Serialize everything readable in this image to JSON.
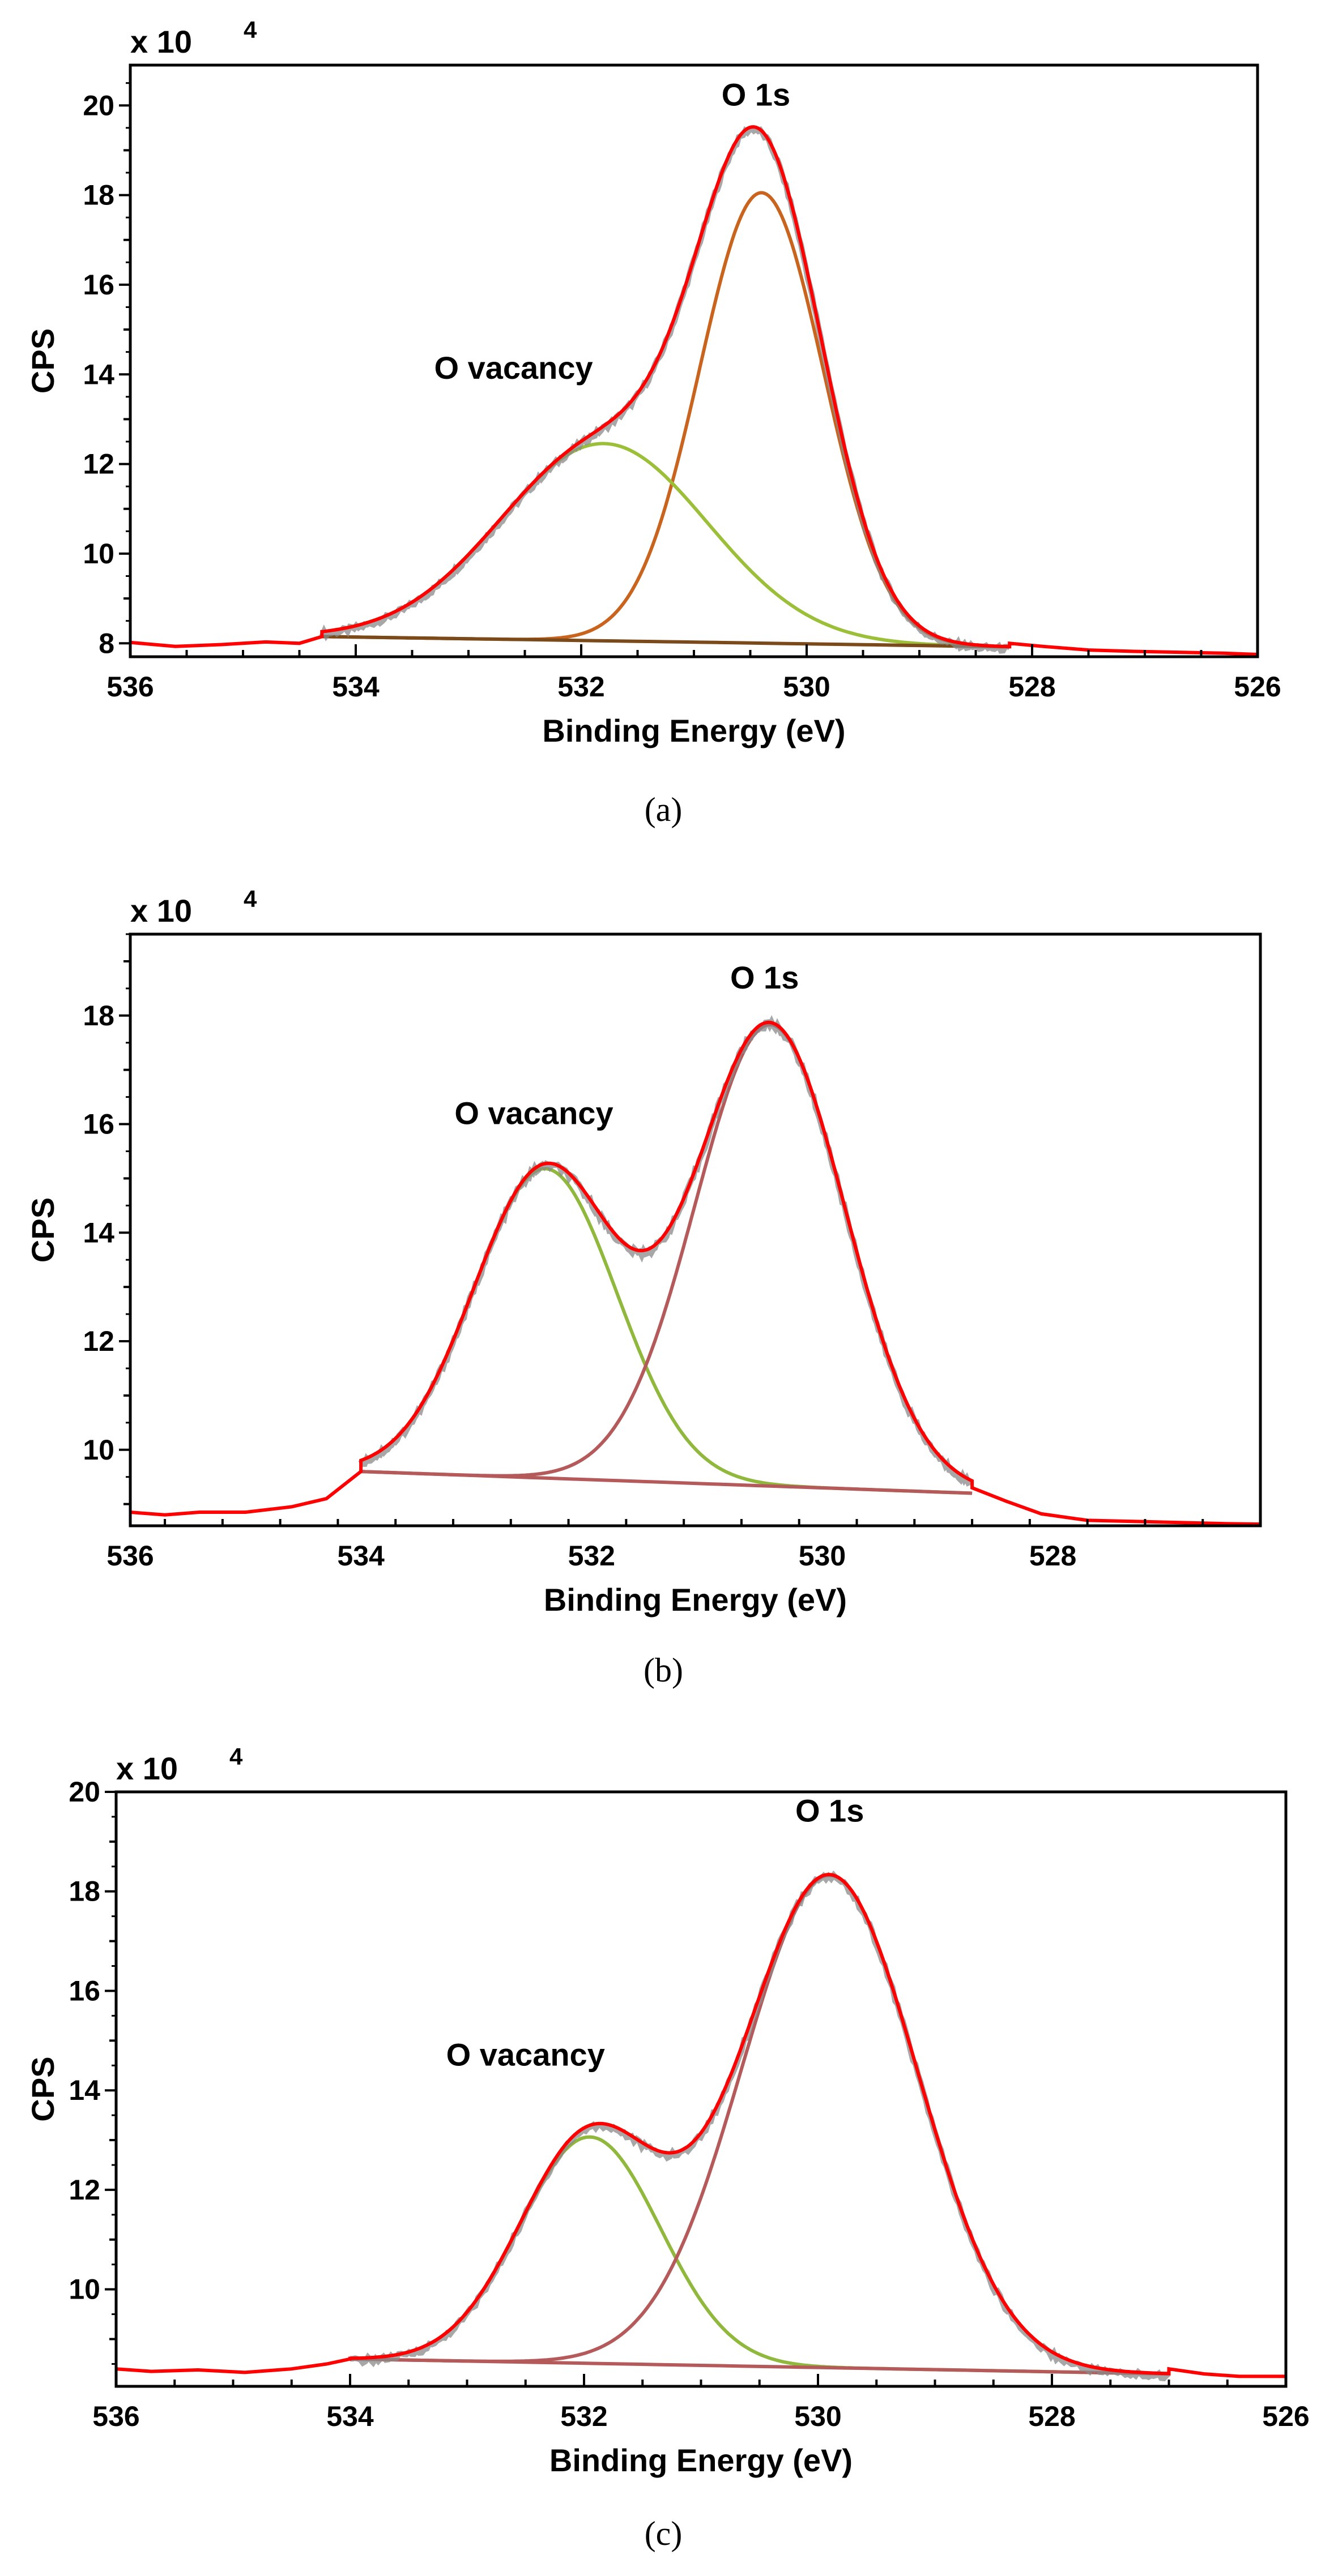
{
  "chart_data": [
    {
      "type": "line",
      "panel": "a",
      "caption": "(a)",
      "xlabel": "Binding Energy (eV)",
      "ylabel": "CPS",
      "y_multiplier": "x 10",
      "y_exponent": "4",
      "xlim": [
        536,
        526
      ],
      "ylim": [
        7.7,
        20.9
      ],
      "xticks": [
        536,
        534,
        532,
        530,
        528,
        526
      ],
      "yticks": [
        8,
        10,
        12,
        14,
        16,
        18,
        20
      ],
      "annotations": [
        {
          "text": "O 1s",
          "x": 530.45,
          "y": 20.0
        },
        {
          "text": "O vacancy",
          "x": 532.6,
          "y": 13.9
        }
      ],
      "fit_range": [
        534.3,
        528.2
      ],
      "baseline": {
        "start": [
          534.3,
          8.15
        ],
        "end": [
          528.2,
          7.92
        ]
      },
      "tail_left": [
        [
          536,
          8.02
        ],
        [
          535.6,
          7.93
        ],
        [
          535.2,
          7.97
        ],
        [
          534.8,
          8.03
        ],
        [
          534.5,
          8.0
        ],
        [
          534.3,
          8.15
        ]
      ],
      "tail_right": [
        [
          528.2,
          8.0
        ],
        [
          527.9,
          7.93
        ],
        [
          527.5,
          7.85
        ],
        [
          527.1,
          7.82
        ],
        [
          526.7,
          7.8
        ],
        [
          526.3,
          7.78
        ],
        [
          526.0,
          7.75
        ]
      ],
      "components": [
        {
          "name": "O 1s",
          "color": "#c8641e",
          "center": 530.4,
          "height": 10.05,
          "sigma": 0.55
        },
        {
          "name": "O vacancy",
          "color": "#9cbf3a",
          "center": 531.8,
          "height": 4.4,
          "sigma": 0.92
        }
      ],
      "series_colors": {
        "raw": "#8a8a8a",
        "envelope": "#ff0000",
        "baseline": "#7a4a1a"
      }
    },
    {
      "type": "line",
      "panel": "b",
      "caption": "(b)",
      "xlabel": "Binding Energy (eV)",
      "ylabel": "CPS",
      "y_multiplier": "x 10",
      "y_exponent": "4",
      "xlim": [
        536,
        526.2
      ],
      "ylim": [
        8.6,
        19.5
      ],
      "xticks": [
        536,
        534,
        532,
        530,
        528
      ],
      "yticks": [
        10,
        12,
        14,
        16,
        18
      ],
      "annotations": [
        {
          "text": "O 1s",
          "x": 530.5,
          "y": 18.5
        },
        {
          "text": "O vacancy",
          "x": 532.5,
          "y": 16.0
        }
      ],
      "fit_range": [
        534.0,
        528.7
      ],
      "baseline": {
        "start": [
          534.0,
          9.6
        ],
        "end": [
          528.7,
          9.2
        ]
      },
      "tail_left": [
        [
          536,
          8.85
        ],
        [
          535.7,
          8.8
        ],
        [
          535.4,
          8.85
        ],
        [
          535.0,
          8.85
        ],
        [
          534.6,
          8.95
        ],
        [
          534.3,
          9.1
        ],
        [
          534.0,
          9.6
        ]
      ],
      "tail_right": [
        [
          528.7,
          9.3
        ],
        [
          528.4,
          9.05
        ],
        [
          528.1,
          8.82
        ],
        [
          527.7,
          8.7
        ],
        [
          527.3,
          8.68
        ],
        [
          526.9,
          8.66
        ],
        [
          526.5,
          8.64
        ],
        [
          526.2,
          8.63
        ]
      ],
      "components": [
        {
          "name": "O vacancy",
          "color": "#8fb83c",
          "center": 532.4,
          "height": 5.7,
          "sigma": 0.62
        },
        {
          "name": "O 1s",
          "color": "#b55a5a",
          "center": 530.45,
          "height": 8.5,
          "sigma": 0.65
        }
      ],
      "series_colors": {
        "raw": "#8a8a8a",
        "envelope": "#ff0000",
        "baseline": "#b55a5a"
      }
    },
    {
      "type": "line",
      "panel": "c",
      "caption": "(c)",
      "xlabel": "Binding Energy (eV)",
      "ylabel": "CPS",
      "y_multiplier": "x 10",
      "y_exponent": "4",
      "xlim": [
        536,
        526
      ],
      "ylim": [
        8.05,
        20.0
      ],
      "xticks": [
        536,
        534,
        532,
        530,
        528,
        526
      ],
      "yticks": [
        10,
        12,
        14,
        16,
        18,
        20
      ],
      "annotations": [
        {
          "text": "O 1s",
          "x": 529.9,
          "y": 19.4
        },
        {
          "text": "O vacancy",
          "x": 532.5,
          "y": 14.5
        }
      ],
      "fit_range": [
        534.0,
        527.0
      ],
      "baseline": {
        "start": [
          534.0,
          8.6
        ],
        "end": [
          527.0,
          8.3
        ]
      },
      "tail_left": [
        [
          536,
          8.4
        ],
        [
          535.7,
          8.35
        ],
        [
          535.3,
          8.38
        ],
        [
          534.9,
          8.33
        ],
        [
          534.5,
          8.4
        ],
        [
          534.2,
          8.5
        ],
        [
          534.0,
          8.6
        ]
      ],
      "tail_right": [
        [
          527.0,
          8.4
        ],
        [
          526.7,
          8.3
        ],
        [
          526.4,
          8.25
        ],
        [
          526.0,
          8.25
        ]
      ],
      "components": [
        {
          "name": "O vacancy",
          "color": "#8fb83c",
          "center": 531.95,
          "height": 4.55,
          "sigma": 0.6
        },
        {
          "name": "O 1s",
          "color": "#b55a5a",
          "center": 529.9,
          "height": 9.9,
          "sigma": 0.75
        }
      ],
      "series_colors": {
        "raw": "#8a8a8a",
        "envelope": "#ff0000",
        "baseline": "#b55a5a"
      }
    }
  ]
}
